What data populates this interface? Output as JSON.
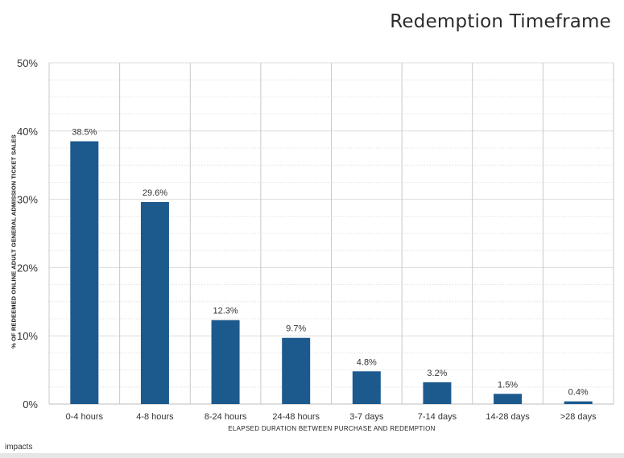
{
  "chart_data": {
    "type": "bar",
    "title": "Redemption Timeframe",
    "xlabel": "ELAPSED DURATION BETWEEN PURCHASE AND REDEMPTION",
    "ylabel": "% OF REDEEMED ONLINE ADULT GENERAL ADMISSION TICKET SALES",
    "categories": [
      "0-4 hours",
      "4-8 hours",
      "8-24 hours",
      "24-48 hours",
      "3-7 days",
      "7-14 days",
      "14-28 days",
      ">28 days"
    ],
    "values": [
      38.5,
      29.6,
      12.3,
      9.7,
      4.8,
      3.2,
      1.5,
      0.4
    ],
    "value_labels": [
      "38.5%",
      "29.6%",
      "12.3%",
      "9.7%",
      "4.8%",
      "3.2%",
      "1.5%",
      "0.4%"
    ],
    "ylim": [
      0,
      50
    ],
    "yticks": [
      0,
      10,
      20,
      30,
      40,
      50
    ],
    "ytick_labels": [
      "0%",
      "10%",
      "20%",
      "30%",
      "40%",
      "50%"
    ],
    "grid": true,
    "bar_color": "#1c5a8e"
  },
  "branding": {
    "logo_text": "impacts"
  }
}
